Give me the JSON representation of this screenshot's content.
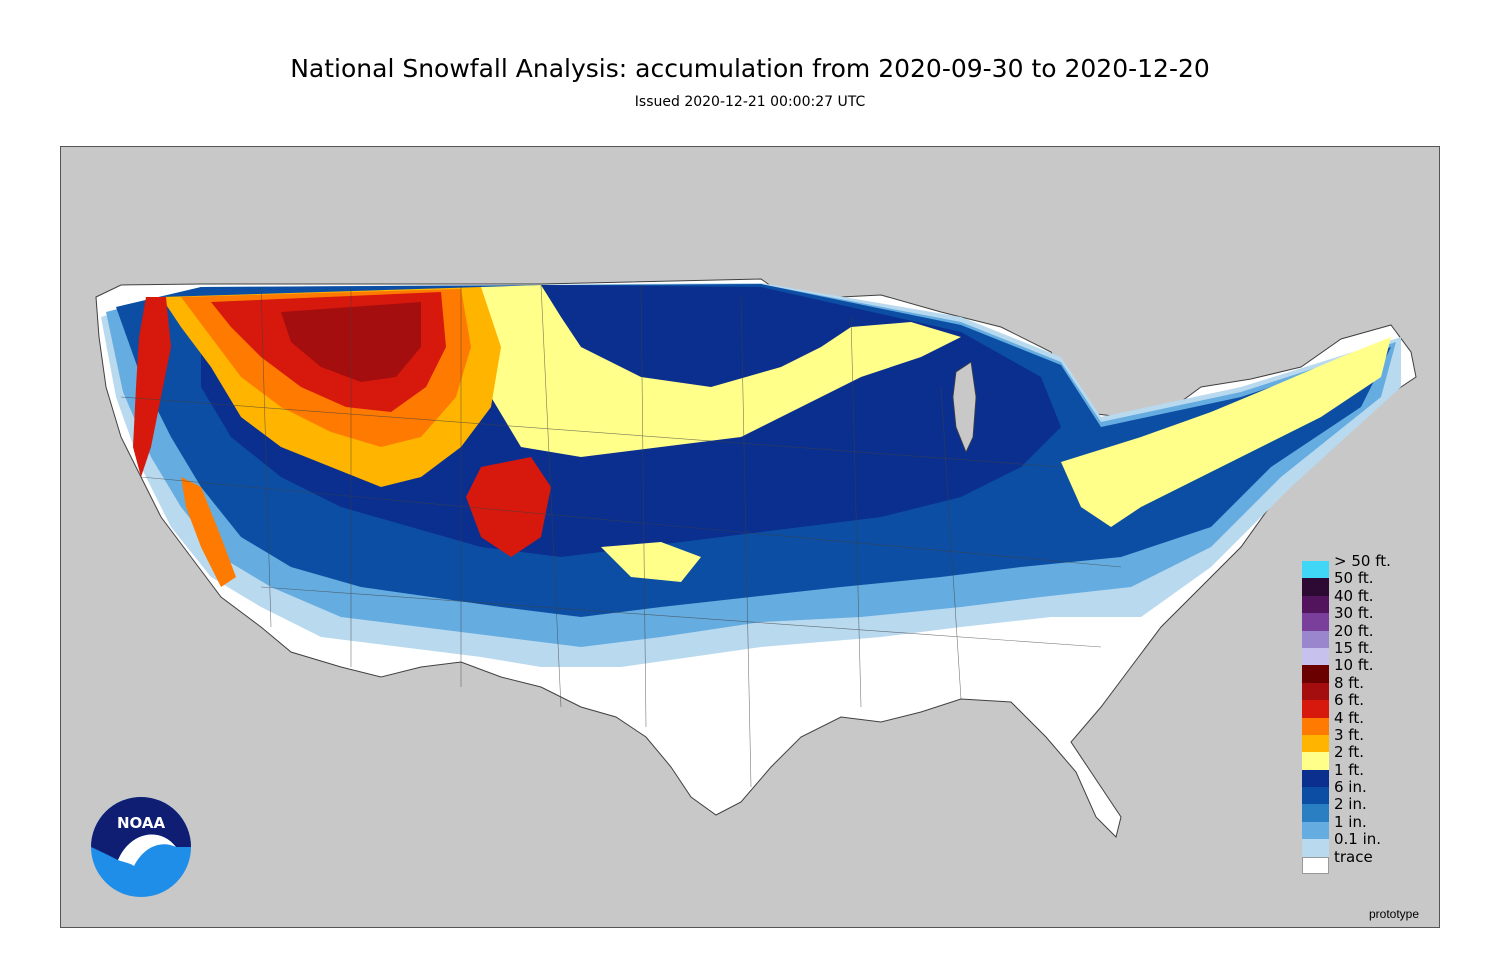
{
  "title": "National Snowfall Analysis: accumulation from 2020-09-30 to 2020-12-20",
  "subtitle": "Issued 2020-12-21 00:00:27 UTC",
  "prototype_label": "prototype",
  "logo": {
    "text": "NOAA",
    "icon": "noaa-seagull-logo"
  },
  "colors": {
    "background": "#c8c8c8",
    "boundary": "#404040",
    "land_trace": "#ffffff"
  },
  "legend": {
    "items": [
      {
        "label": "> 50 ft.",
        "color": "#3fd7f5"
      },
      {
        "label": "50 ft.",
        "color": "#2c0a33"
      },
      {
        "label": "40 ft.",
        "color": "#52145c"
      },
      {
        "label": "30 ft.",
        "color": "#7a3f9a"
      },
      {
        "label": "20 ft.",
        "color": "#9a86cc"
      },
      {
        "label": "15 ft.",
        "color": "#c7c1ee"
      },
      {
        "label": "10 ft.",
        "color": "#6b0000"
      },
      {
        "label": "8 ft.",
        "color": "#a50e0e"
      },
      {
        "label": "6 ft.",
        "color": "#d7180c"
      },
      {
        "label": "4 ft.",
        "color": "#ff7a00"
      },
      {
        "label": "3 ft.",
        "color": "#ffb400"
      },
      {
        "label": "2 ft.",
        "color": "#ffff8a"
      },
      {
        "label": "1 ft.",
        "color": "#0a2f8f"
      },
      {
        "label": "6 in.",
        "color": "#0c4ea3"
      },
      {
        "label": "2 in.",
        "color": "#2a7ec2"
      },
      {
        "label": "1 in.",
        "color": "#65ace0"
      },
      {
        "label": "0.1 in.",
        "color": "#b9d9ef"
      },
      {
        "label": "trace",
        "color": "#ffffff"
      }
    ]
  }
}
